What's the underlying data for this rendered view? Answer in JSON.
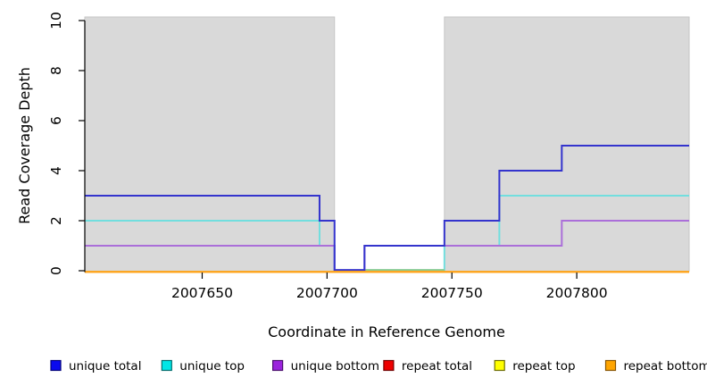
{
  "figure": {
    "background": "#ffffff",
    "panel_fill": "#d9d9d9",
    "panel_border": "#c6c6c6",
    "axis_color": "#000000",
    "text_color": "#000000"
  },
  "chart_data": {
    "type": "line",
    "step": true,
    "title": "",
    "xlabel": "Coordinate in Reference Genome",
    "ylabel": "Read Coverage Depth",
    "xlim": [
      2007603,
      2007845
    ],
    "ylim": [
      0,
      10
    ],
    "xticks": [
      2007650,
      2007700,
      2007750,
      2007800
    ],
    "yticks": [
      0,
      2,
      4,
      6,
      8,
      10
    ],
    "grid": false,
    "legend_position": "bottom",
    "shaded_regions": [
      {
        "name": "covered-region-left",
        "from": 2007603,
        "to": 2007703
      },
      {
        "name": "covered-region-right",
        "from": 2007747,
        "to": 2007845
      }
    ],
    "series": [
      {
        "name": "unique total",
        "line_color": "#3434cd",
        "legend_fill": "#0a0aee",
        "legend_border": "#00007d",
        "x": [
          2007603,
          2007697,
          2007703,
          2007715,
          2007747,
          2007769,
          2007794,
          2007845
        ],
        "y": [
          3,
          2,
          0,
          1,
          2,
          4,
          5,
          5
        ]
      },
      {
        "name": "unique top",
        "line_color": "#72dede",
        "legend_fill": "#00e6e6",
        "legend_border": "#006e6e",
        "x": [
          2007603,
          2007697,
          2007703,
          2007747,
          2007769,
          2007845
        ],
        "y": [
          2,
          1,
          0,
          1,
          3,
          3
        ]
      },
      {
        "name": "unique bottom",
        "line_color": "#ab6fd9",
        "legend_fill": "#9b23dd",
        "legend_border": "#4d1070",
        "x": [
          2007603,
          2007703,
          2007715,
          2007794,
          2007845
        ],
        "y": [
          1,
          0,
          1,
          2,
          2
        ]
      },
      {
        "name": "repeat total",
        "line_color": "#e60000",
        "legend_fill": "#ee0000",
        "legend_border": "#740000",
        "x": [
          2007603,
          2007845
        ],
        "y": [
          0,
          0
        ]
      },
      {
        "name": "repeat top",
        "line_color": "#ffff33",
        "legend_fill": "#ffff00",
        "legend_border": "#6e6e00",
        "x": [
          2007603,
          2007845
        ],
        "y": [
          0,
          0
        ]
      },
      {
        "name": "repeat bottom",
        "line_color": "#ffa41c",
        "legend_fill": "#ffa500",
        "legend_border": "#8a5500",
        "x": [
          2007603,
          2007845
        ],
        "y": [
          0,
          0
        ]
      }
    ],
    "overlay_segments": [
      {
        "name": "unique-top-zero-blend",
        "color": "#8bc98b",
        "from": 2007715,
        "to": 2007747,
        "y": 0
      }
    ]
  }
}
